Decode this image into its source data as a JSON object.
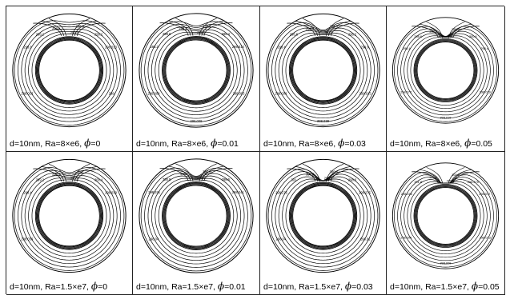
{
  "figure": {
    "panels": [
      {
        "caption_main": "d=10nm, Ra=8×e6,",
        "phi_symbol": "ϕ",
        "caption_phi": "=0",
        "labels": [
          "298.4",
          "298.2",
          "298.8",
          "299.4",
          "299.2",
          "298.6",
          "298.013",
          "298.013",
          "298"
        ]
      },
      {
        "caption_main": "d=10nm, Ra=8×e6,",
        "phi_symbol": "ϕ",
        "caption_phi": "=0.01",
        "labels": [
          "298.4",
          "298.6",
          "298.8",
          "299.8",
          "298.4",
          "298.2",
          "298.013",
          "298.009",
          "298.003",
          "298.009"
        ]
      },
      {
        "caption_main": "d=10nm, Ra=8×e6,",
        "phi_symbol": "ϕ",
        "caption_phi": "=0.03",
        "labels": [
          "298.4",
          "298.6",
          "298.8",
          "300.4",
          "298.2",
          "298.4",
          "298.6",
          "298.009",
          "298.013",
          "298.038"
        ]
      },
      {
        "caption_main": "d=10nm, Ra=8×e6,",
        "phi_symbol": "ϕ",
        "caption_phi": "=0.05",
        "labels": [
          "298.4",
          "298.6",
          "299.2",
          "300",
          "300.8",
          "298.4",
          "298.4",
          "298.072",
          "298.019",
          "298.019"
        ]
      },
      {
        "caption_main": "d=10nm, Ra=1.5×e7,",
        "phi_symbol": "ϕ",
        "caption_phi": "=0",
        "labels": [
          "298.6",
          "299.2",
          "300",
          "300.8",
          "300.4",
          "298.4",
          "298.039",
          "298.039"
        ]
      },
      {
        "caption_main": "d=10nm, Ra=1.5×e7,",
        "phi_symbol": "ϕ",
        "caption_phi": "=0.01",
        "labels": [
          "300",
          "300.8",
          "300.6",
          "299.6",
          "298.6",
          "298.241",
          "298.241",
          "298.04"
        ]
      },
      {
        "caption_main": "d=10nm, Ra=1.5×e7,",
        "phi_symbol": "ϕ",
        "caption_phi": "=0.03",
        "labels": [
          "300.6",
          "301",
          "300.4",
          "299.8",
          "298.6",
          "298.275",
          "298.275",
          "298.04",
          "298.01"
        ]
      },
      {
        "caption_main": "d=10nm, Ra=1.5×e7,",
        "phi_symbol": "ϕ",
        "caption_phi": "=0.05",
        "labels": [
          "301.5",
          "301.8",
          "300.6",
          "298.6",
          "298.475",
          "298.246",
          "298.072",
          "298.006",
          "298.013",
          "298.009"
        ]
      }
    ]
  }
}
